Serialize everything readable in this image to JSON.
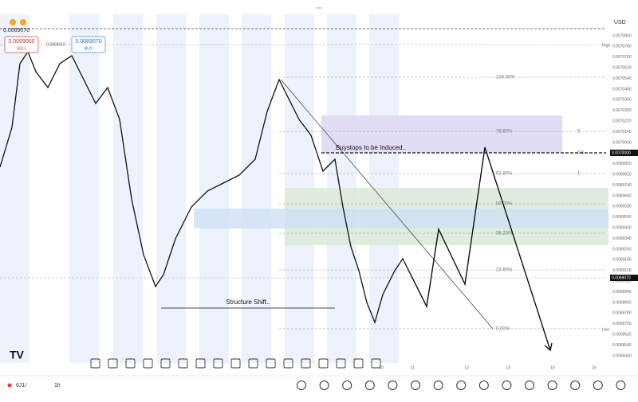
{
  "header": {
    "dots": "...",
    "top_price": "0.0069070",
    "sell_price": "0.0069060",
    "sell": "SELL",
    "mid_price": "0.0069010",
    "buy_price": "0.0069070",
    "buy": "BUY",
    "currency": "USD"
  },
  "fib_levels": [
    "100.00%",
    "78.60%",
    "61.80%",
    "50.00%",
    "38.20%",
    "23.60%",
    "0.00%"
  ],
  "fib_marks": [
    "0",
    "0.5",
    "1"
  ],
  "annotations": {
    "buystops": "Buystops to be Induced..",
    "structure": "Structure Shift.."
  },
  "price_axis": [
    "0.0070860",
    "0.0070780",
    "0.0070700",
    "0.0070620",
    "0.0070540",
    "0.0070460",
    "0.0070380",
    "0.0070300",
    "0.0070220",
    "0.0070140",
    "0.0070060",
    "0.0069980",
    "0.0069900",
    "0.0069820",
    "0.0069740",
    "0.0069660",
    "0.0069580",
    "0.0069500",
    "0.0069420",
    "0.0069340",
    "0.0069260",
    "0.0069180",
    "0.0069100",
    "0.0069020",
    "0.0068940",
    "0.0068860",
    "0.0068780",
    "0.0068700",
    "0.0068620",
    "0.0068540",
    "0.0068460"
  ],
  "axis_tags": {
    "high": "High",
    "low": "Low",
    "level_a": "0.0070000",
    "level_b": "0.0069070"
  },
  "time_axis": [
    "10",
    "11",
    "13",
    "14",
    "15",
    "16"
  ],
  "footer": {
    "symbol": "6J1!",
    "interval": "1h"
  }
}
